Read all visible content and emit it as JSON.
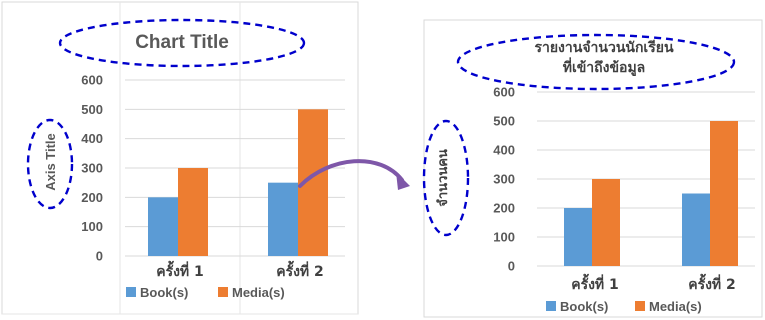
{
  "chart_data": [
    {
      "type": "bar",
      "title": "Chart Title",
      "ylabel": "Axis Title",
      "xlabel": "",
      "categories": [
        "ครั้งที่ 1",
        "ครั้งที่ 2"
      ],
      "series": [
        {
          "name": "Book(s)",
          "values": [
            200,
            250
          ],
          "color": "#5b9bd5"
        },
        {
          "name": "Media(s)",
          "values": [
            300,
            500
          ],
          "color": "#ed7d31"
        }
      ],
      "ylim": [
        0,
        600
      ],
      "yticks": [
        0,
        100,
        200,
        300,
        400,
        500,
        600
      ],
      "grid": true,
      "legend": "bottom"
    },
    {
      "type": "bar",
      "title": "รายงานจำนวนนักเรียนที่เข้าถึงข้อมูล",
      "title_lines": [
        "รายงานจำนวนนักเรียน",
        "ที่เข้าถึงข้อมูล"
      ],
      "ylabel": "จำนวนคน",
      "xlabel": "",
      "categories": [
        "ครั้งที่ 1",
        "ครั้งที่ 2"
      ],
      "series": [
        {
          "name": "Book(s)",
          "values": [
            200,
            250
          ],
          "color": "#5b9bd5"
        },
        {
          "name": "Media(s)",
          "values": [
            300,
            500
          ],
          "color": "#ed7d31"
        }
      ],
      "ylim": [
        0,
        600
      ],
      "yticks": [
        0,
        100,
        200,
        300,
        400,
        500,
        600
      ],
      "grid": true,
      "legend": "bottom"
    }
  ],
  "annotations": {
    "ellipse_color": "#0000cc",
    "arrow_color": "#7e57a8"
  }
}
